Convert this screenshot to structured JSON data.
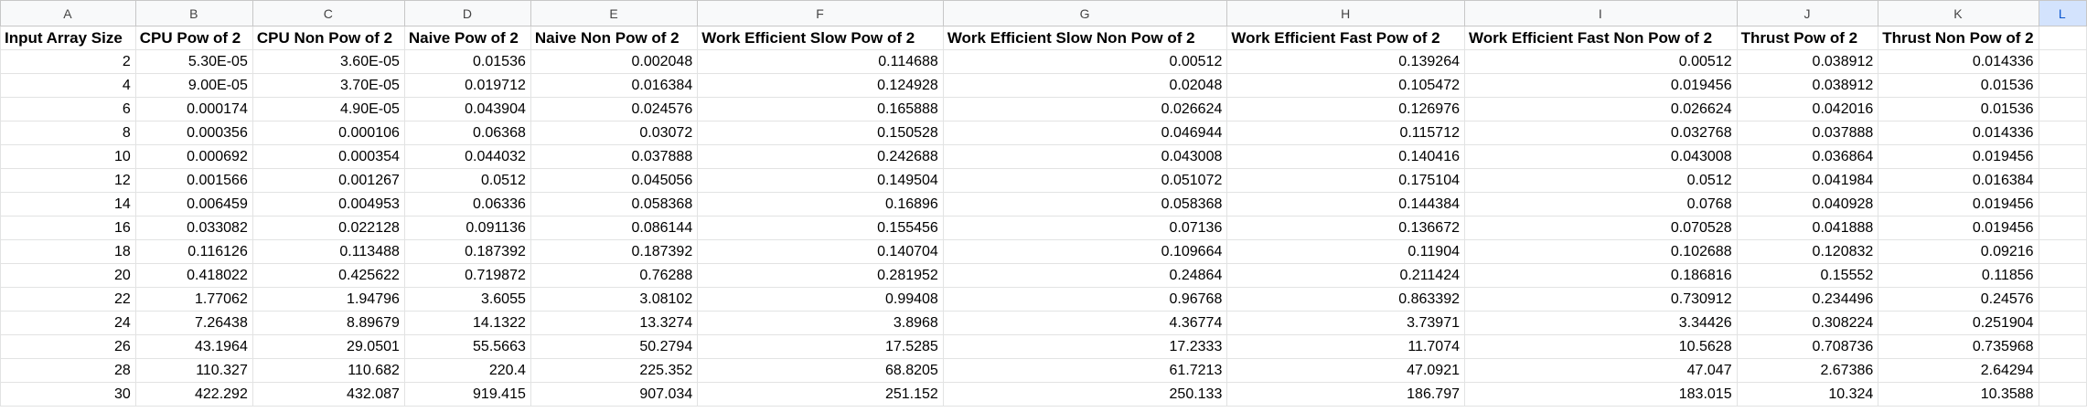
{
  "column_letters": [
    "A",
    "B",
    "C",
    "D",
    "E",
    "F",
    "G",
    "H",
    "I",
    "J",
    "K",
    "L"
  ],
  "headers": [
    "Input Array Size",
    "CPU Pow of 2",
    "CPU Non Pow of 2",
    "Naive Pow of 2",
    "Naive Non Pow of 2",
    "Work Efficient Slow Pow of 2",
    "Work Efficient Slow Non Pow of 2",
    "Work Efficient Fast Pow of 2",
    "Work Efficient Fast Non Pow of 2",
    "Thrust Pow of 2",
    "Thrust Non Pow of 2",
    ""
  ],
  "rows": [
    [
      "2",
      "5.30E-05",
      "3.60E-05",
      "0.01536",
      "0.002048",
      "0.114688",
      "0.00512",
      "0.139264",
      "0.00512",
      "0.038912",
      "0.014336",
      ""
    ],
    [
      "4",
      "9.00E-05",
      "3.70E-05",
      "0.019712",
      "0.016384",
      "0.124928",
      "0.02048",
      "0.105472",
      "0.019456",
      "0.038912",
      "0.01536",
      ""
    ],
    [
      "6",
      "0.000174",
      "4.90E-05",
      "0.043904",
      "0.024576",
      "0.165888",
      "0.026624",
      "0.126976",
      "0.026624",
      "0.042016",
      "0.01536",
      ""
    ],
    [
      "8",
      "0.000356",
      "0.000106",
      "0.06368",
      "0.03072",
      "0.150528",
      "0.046944",
      "0.115712",
      "0.032768",
      "0.037888",
      "0.014336",
      ""
    ],
    [
      "10",
      "0.000692",
      "0.000354",
      "0.044032",
      "0.037888",
      "0.242688",
      "0.043008",
      "0.140416",
      "0.043008",
      "0.036864",
      "0.019456",
      ""
    ],
    [
      "12",
      "0.001566",
      "0.001267",
      "0.0512",
      "0.045056",
      "0.149504",
      "0.051072",
      "0.175104",
      "0.0512",
      "0.041984",
      "0.016384",
      ""
    ],
    [
      "14",
      "0.006459",
      "0.004953",
      "0.06336",
      "0.058368",
      "0.16896",
      "0.058368",
      "0.144384",
      "0.0768",
      "0.040928",
      "0.019456",
      ""
    ],
    [
      "16",
      "0.033082",
      "0.022128",
      "0.091136",
      "0.086144",
      "0.155456",
      "0.07136",
      "0.136672",
      "0.070528",
      "0.041888",
      "0.019456",
      ""
    ],
    [
      "18",
      "0.116126",
      "0.113488",
      "0.187392",
      "0.187392",
      "0.140704",
      "0.109664",
      "0.11904",
      "0.102688",
      "0.120832",
      "0.09216",
      ""
    ],
    [
      "20",
      "0.418022",
      "0.425622",
      "0.719872",
      "0.76288",
      "0.281952",
      "0.24864",
      "0.211424",
      "0.186816",
      "0.15552",
      "0.11856",
      ""
    ],
    [
      "22",
      "1.77062",
      "1.94796",
      "3.6055",
      "3.08102",
      "0.99408",
      "0.96768",
      "0.863392",
      "0.730912",
      "0.234496",
      "0.24576",
      ""
    ],
    [
      "24",
      "7.26438",
      "8.89679",
      "14.1322",
      "13.3274",
      "3.8968",
      "4.36774",
      "3.73971",
      "3.34426",
      "0.308224",
      "0.251904",
      ""
    ],
    [
      "26",
      "43.1964",
      "29.0501",
      "55.5663",
      "50.2794",
      "17.5285",
      "17.2333",
      "11.7074",
      "10.5628",
      "0.708736",
      "0.735968",
      ""
    ],
    [
      "28",
      "110.327",
      "110.682",
      "220.4",
      "225.352",
      "68.8205",
      "61.7213",
      "47.0921",
      "47.047",
      "2.67386",
      "2.64294",
      ""
    ],
    [
      "30",
      "422.292",
      "432.087",
      "919.415",
      "907.034",
      "251.152",
      "250.133",
      "186.797",
      "183.015",
      "10.324",
      "10.3588",
      ""
    ]
  ]
}
